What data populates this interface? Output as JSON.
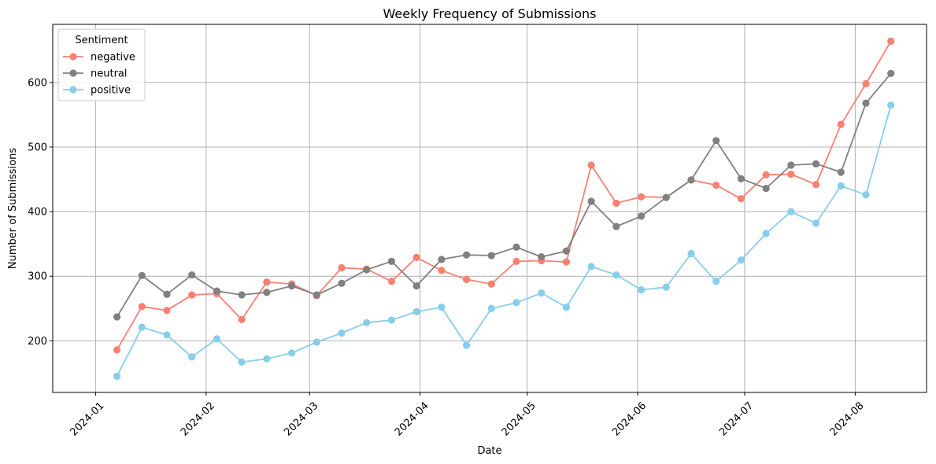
{
  "chart_data": {
    "type": "line",
    "title": "Weekly Frequency of Submissions",
    "xlabel": "Date",
    "ylabel": "Number of Submissions",
    "grid": true,
    "legend": {
      "title": "Sentiment",
      "placement": "top-left"
    },
    "x_ticks": [
      {
        "date": "2024-01-01",
        "label": "2024-01"
      },
      {
        "date": "2024-02-01",
        "label": "2024-02"
      },
      {
        "date": "2024-03-01",
        "label": "2024-03"
      },
      {
        "date": "2024-04-01",
        "label": "2024-04"
      },
      {
        "date": "2024-05-01",
        "label": "2024-05"
      },
      {
        "date": "2024-06-01",
        "label": "2024-06"
      },
      {
        "date": "2024-07-01",
        "label": "2024-07"
      },
      {
        "date": "2024-08-01",
        "label": "2024-08"
      }
    ],
    "xlim": [
      "2023-12-20",
      "2024-08-21"
    ],
    "ylim": [
      120,
      690
    ],
    "y_ticks": [
      200,
      300,
      400,
      500,
      600
    ],
    "x": [
      "2024-01-07",
      "2024-01-14",
      "2024-01-21",
      "2024-01-28",
      "2024-02-04",
      "2024-02-11",
      "2024-02-18",
      "2024-02-25",
      "2024-03-03",
      "2024-03-10",
      "2024-03-17",
      "2024-03-24",
      "2024-03-31",
      "2024-04-07",
      "2024-04-14",
      "2024-04-21",
      "2024-04-28",
      "2024-05-05",
      "2024-05-12",
      "2024-05-19",
      "2024-05-26",
      "2024-06-02",
      "2024-06-09",
      "2024-06-16",
      "2024-06-23",
      "2024-06-30",
      "2024-07-07",
      "2024-07-14",
      "2024-07-21",
      "2024-07-28",
      "2024-08-04",
      "2024-08-11"
    ],
    "series": [
      {
        "name": "negative",
        "color": "#fa8072",
        "values": [
          186,
          253,
          247,
          271,
          273,
          233,
          291,
          288,
          270,
          313,
          311,
          292,
          329,
          309,
          295,
          288,
          323,
          324,
          322,
          472,
          413,
          423,
          422,
          449,
          441,
          420,
          457,
          458,
          442,
          535,
          598,
          664
        ]
      },
      {
        "name": "neutral",
        "color": "#808080",
        "values": [
          237,
          301,
          272,
          302,
          277,
          271,
          275,
          285,
          271,
          289,
          310,
          323,
          285,
          326,
          333,
          332,
          345,
          330,
          339,
          416,
          377,
          393,
          422,
          449,
          510,
          451,
          436,
          472,
          474,
          461,
          568,
          614
        ]
      },
      {
        "name": "positive",
        "color": "#87ceeb",
        "values": [
          145,
          221,
          209,
          175,
          203,
          167,
          172,
          181,
          198,
          212,
          228,
          232,
          245,
          252,
          193,
          250,
          259,
          274,
          252,
          315,
          302,
          279,
          283,
          335,
          292,
          325,
          366,
          400,
          382,
          440,
          426,
          565
        ]
      }
    ]
  }
}
